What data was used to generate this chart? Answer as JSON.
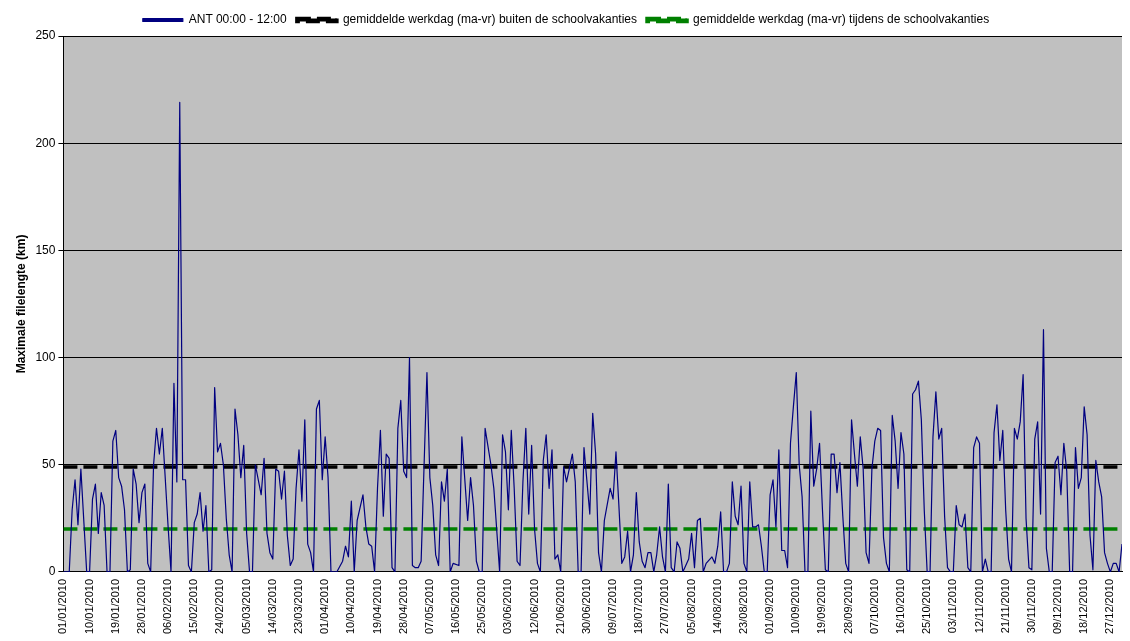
{
  "chart_data": {
    "type": "line",
    "ylabel": "Maximale filelengte (km)",
    "legend": "top",
    "grid": "y",
    "marker": "none",
    "line_style": "solid",
    "xlim": [
      "2010-01-01",
      "2010-12-31"
    ],
    "xticks": [
      {
        "value": "2010-01-01",
        "label": "01/01/2010"
      },
      {
        "value": "2010-01-10",
        "label": "10/01/2010"
      },
      {
        "value": "2010-01-19",
        "label": "19/01/2010"
      },
      {
        "value": "2010-01-28",
        "label": "28/01/2010"
      },
      {
        "value": "2010-02-06",
        "label": "06/02/2010"
      },
      {
        "value": "2010-02-15",
        "label": "15/02/2010"
      },
      {
        "value": "2010-02-24",
        "label": "24/02/2010"
      },
      {
        "value": "2010-03-05",
        "label": "05/03/2010"
      },
      {
        "value": "2010-03-14",
        "label": "14/03/2010"
      },
      {
        "value": "2010-03-23",
        "label": "23/03/2010"
      },
      {
        "value": "2010-04-01",
        "label": "01/04/2010"
      },
      {
        "value": "2010-04-10",
        "label": "10/04/2010"
      },
      {
        "value": "2010-04-19",
        "label": "19/04/2010"
      },
      {
        "value": "2010-04-28",
        "label": "28/04/2010"
      },
      {
        "value": "2010-05-07",
        "label": "07/05/2010"
      },
      {
        "value": "2010-05-16",
        "label": "16/05/2010"
      },
      {
        "value": "2010-05-25",
        "label": "25/05/2010"
      },
      {
        "value": "2010-06-03",
        "label": "03/06/2010"
      },
      {
        "value": "2010-06-12",
        "label": "12/06/2010"
      },
      {
        "value": "2010-06-21",
        "label": "21/06/2010"
      },
      {
        "value": "2010-06-30",
        "label": "30/06/2010"
      },
      {
        "value": "2010-07-09",
        "label": "09/07/2010"
      },
      {
        "value": "2010-07-18",
        "label": "18/07/2010"
      },
      {
        "value": "2010-07-27",
        "label": "27/07/2010"
      },
      {
        "value": "2010-08-05",
        "label": "05/08/2010"
      },
      {
        "value": "2010-08-14",
        "label": "14/08/2010"
      },
      {
        "value": "2010-08-23",
        "label": "23/08/2010"
      },
      {
        "value": "2010-09-01",
        "label": "01/09/2010"
      },
      {
        "value": "2010-09-10",
        "label": "10/09/2010"
      },
      {
        "value": "2010-09-19",
        "label": "19/09/2010"
      },
      {
        "value": "2010-09-28",
        "label": "28/09/2010"
      },
      {
        "value": "2010-10-07",
        "label": "07/10/2010"
      },
      {
        "value": "2010-10-16",
        "label": "16/10/2010"
      },
      {
        "value": "2010-10-25",
        "label": "25/10/2010"
      },
      {
        "value": "2010-11-03",
        "label": "03/11/2010"
      },
      {
        "value": "2010-11-12",
        "label": "12/11/2010"
      },
      {
        "value": "2010-11-21",
        "label": "21/11/2010"
      },
      {
        "value": "2010-11-30",
        "label": "30/11/2010"
      },
      {
        "value": "2010-12-09",
        "label": "09/12/2010"
      },
      {
        "value": "2010-12-18",
        "label": "18/12/2010"
      },
      {
        "value": "2010-12-27",
        "label": "27/12/2010"
      }
    ],
    "ylim": [
      0,
      250
    ],
    "yticks": [
      0,
      50,
      100,
      150,
      200,
      250
    ],
    "ref_lines": [
      {
        "axis": "y",
        "value": 49,
        "label": "gemiddelde werkdag (ma-vr) buiten de schoolvakanties",
        "color": "#000000",
        "line_style": "dashed"
      },
      {
        "axis": "y",
        "value": 20,
        "label": "gemiddelde werkdag (ma-vr) tijdens de schoolvakanties",
        "color": "#008000",
        "line_style": "dashed"
      }
    ],
    "series": [
      {
        "name": "ANT 00:00 - 12:00",
        "color": "#000080",
        "x": [
          "2010-01-01",
          "2010-01-03",
          "2010-01-04",
          "2010-01-05",
          "2010-01-06",
          "2010-01-07",
          "2010-01-09",
          "2010-01-10",
          "2010-01-11",
          "2010-01-12",
          "2010-01-13",
          "2010-01-14",
          "2010-01-15",
          "2010-01-16",
          "2010-01-17",
          "2010-01-18",
          "2010-01-19",
          "2010-01-20",
          "2010-01-21",
          "2010-01-22",
          "2010-01-23",
          "2010-01-24",
          "2010-01-25",
          "2010-01-26",
          "2010-01-27",
          "2010-01-28",
          "2010-01-29",
          "2010-01-30",
          "2010-01-31",
          "2010-02-01",
          "2010-02-02",
          "2010-02-03",
          "2010-02-04",
          "2010-02-06",
          "2010-02-07",
          "2010-02-08",
          "2010-02-09",
          "2010-02-10",
          "2010-02-11",
          "2010-02-12",
          "2010-02-13",
          "2010-02-14",
          "2010-02-15",
          "2010-02-16",
          "2010-02-17",
          "2010-02-18",
          "2010-02-19",
          "2010-02-20",
          "2010-02-21",
          "2010-02-22",
          "2010-02-23",
          "2010-02-24",
          "2010-02-25",
          "2010-02-26",
          "2010-02-27",
          "2010-02-28",
          "2010-03-01",
          "2010-03-02",
          "2010-03-03",
          "2010-03-04",
          "2010-03-05",
          "2010-03-06",
          "2010-03-07",
          "2010-03-08",
          "2010-03-10",
          "2010-03-11",
          "2010-03-12",
          "2010-03-13",
          "2010-03-14",
          "2010-03-15",
          "2010-03-16",
          "2010-03-17",
          "2010-03-18",
          "2010-03-19",
          "2010-03-20",
          "2010-03-21",
          "2010-03-22",
          "2010-03-23",
          "2010-03-24",
          "2010-03-25",
          "2010-03-26",
          "2010-03-27",
          "2010-03-28",
          "2010-03-29",
          "2010-03-30",
          "2010-03-31",
          "2010-04-01",
          "2010-04-02",
          "2010-04-03",
          "2010-04-05",
          "2010-04-07",
          "2010-04-08",
          "2010-04-09",
          "2010-04-10",
          "2010-04-11",
          "2010-04-12",
          "2010-04-14",
          "2010-04-15",
          "2010-04-16",
          "2010-04-17",
          "2010-04-18",
          "2010-04-19",
          "2010-04-20",
          "2010-04-21",
          "2010-04-22",
          "2010-04-23",
          "2010-04-24",
          "2010-04-25",
          "2010-04-26",
          "2010-04-27",
          "2010-04-28",
          "2010-04-29",
          "2010-04-30",
          "2010-05-01",
          "2010-05-02",
          "2010-05-03",
          "2010-05-04",
          "2010-05-06",
          "2010-05-07",
          "2010-05-08",
          "2010-05-09",
          "2010-05-10",
          "2010-05-11",
          "2010-05-12",
          "2010-05-13",
          "2010-05-14",
          "2010-05-15",
          "2010-05-17",
          "2010-05-18",
          "2010-05-20",
          "2010-05-21",
          "2010-05-22",
          "2010-05-23",
          "2010-05-24",
          "2010-05-25",
          "2010-05-26",
          "2010-05-28",
          "2010-05-29",
          "2010-05-31",
          "2010-06-01",
          "2010-06-02",
          "2010-06-03",
          "2010-06-04",
          "2010-06-05",
          "2010-06-06",
          "2010-06-07",
          "2010-06-08",
          "2010-06-09",
          "2010-06-10",
          "2010-06-11",
          "2010-06-12",
          "2010-06-13",
          "2010-06-14",
          "2010-06-15",
          "2010-06-16",
          "2010-06-17",
          "2010-06-18",
          "2010-06-19",
          "2010-06-20",
          "2010-06-21",
          "2010-06-22",
          "2010-06-23",
          "2010-06-25",
          "2010-06-26",
          "2010-06-27",
          "2010-06-28",
          "2010-06-29",
          "2010-07-01",
          "2010-07-02",
          "2010-07-03",
          "2010-07-04",
          "2010-07-05",
          "2010-07-06",
          "2010-07-08",
          "2010-07-09",
          "2010-07-10",
          "2010-07-11",
          "2010-07-12",
          "2010-07-13",
          "2010-07-14",
          "2010-07-15",
          "2010-07-16",
          "2010-07-17",
          "2010-07-18",
          "2010-07-19",
          "2010-07-20",
          "2010-07-21",
          "2010-07-22",
          "2010-07-23",
          "2010-07-24",
          "2010-07-25",
          "2010-07-26",
          "2010-07-27",
          "2010-07-28",
          "2010-07-29",
          "2010-07-30",
          "2010-07-31",
          "2010-08-01",
          "2010-08-02",
          "2010-08-04",
          "2010-08-05",
          "2010-08-06",
          "2010-08-07",
          "2010-08-08",
          "2010-08-09",
          "2010-08-10",
          "2010-08-12",
          "2010-08-13",
          "2010-08-14",
          "2010-08-15",
          "2010-08-16",
          "2010-08-17",
          "2010-08-18",
          "2010-08-19",
          "2010-08-20",
          "2010-08-21",
          "2010-08-22",
          "2010-08-23",
          "2010-08-24",
          "2010-08-25",
          "2010-08-26",
          "2010-08-27",
          "2010-08-28",
          "2010-08-29",
          "2010-08-30",
          "2010-08-31",
          "2010-09-01",
          "2010-09-02",
          "2010-09-03",
          "2010-09-04",
          "2010-09-05",
          "2010-09-06",
          "2010-09-07",
          "2010-09-08",
          "2010-09-09",
          "2010-09-10",
          "2010-09-11",
          "2010-09-12",
          "2010-09-13",
          "2010-09-14",
          "2010-09-15",
          "2010-09-16",
          "2010-09-17",
          "2010-09-18",
          "2010-09-19",
          "2010-09-20",
          "2010-09-21",
          "2010-09-22",
          "2010-09-23",
          "2010-09-24",
          "2010-09-25",
          "2010-09-26",
          "2010-09-27",
          "2010-09-28",
          "2010-09-29",
          "2010-09-30",
          "2010-10-01",
          "2010-10-02",
          "2010-10-03",
          "2010-10-04",
          "2010-10-05",
          "2010-10-06",
          "2010-10-07",
          "2010-10-08",
          "2010-10-09",
          "2010-10-10",
          "2010-10-11",
          "2010-10-12",
          "2010-10-13",
          "2010-10-14",
          "2010-10-15",
          "2010-10-16",
          "2010-10-17",
          "2010-10-18",
          "2010-10-19",
          "2010-10-20",
          "2010-10-21",
          "2010-10-22",
          "2010-10-23",
          "2010-10-24",
          "2010-10-25",
          "2010-10-26",
          "2010-10-27",
          "2010-10-28",
          "2010-10-29",
          "2010-10-30",
          "2010-10-31",
          "2010-11-01",
          "2010-11-02",
          "2010-11-03",
          "2010-11-04",
          "2010-11-05",
          "2010-11-06",
          "2010-11-07",
          "2010-11-08",
          "2010-11-09",
          "2010-11-10",
          "2010-11-11",
          "2010-11-12",
          "2010-11-13",
          "2010-11-14",
          "2010-11-15",
          "2010-11-16",
          "2010-11-17",
          "2010-11-18",
          "2010-11-19",
          "2010-11-20",
          "2010-11-21",
          "2010-11-22",
          "2010-11-23",
          "2010-11-24",
          "2010-11-25",
          "2010-11-26",
          "2010-11-27",
          "2010-11-28",
          "2010-11-29",
          "2010-11-30",
          "2010-12-01",
          "2010-12-02",
          "2010-12-03",
          "2010-12-04",
          "2010-12-05",
          "2010-12-06",
          "2010-12-07",
          "2010-12-08",
          "2010-12-09",
          "2010-12-10",
          "2010-12-11",
          "2010-12-12",
          "2010-12-13",
          "2010-12-14",
          "2010-12-15",
          "2010-12-16",
          "2010-12-17",
          "2010-12-18",
          "2010-12-19",
          "2010-12-20",
          "2010-12-21",
          "2010-12-22",
          "2010-12-23",
          "2010-12-24",
          "2010-12-25",
          "2010-12-26",
          "2010-12-27",
          "2010-12-28",
          "2010-12-29",
          "2010-12-30",
          "2010-12-31"
        ],
        "values": [
          0,
          0,
          29,
          43,
          22,
          48,
          0,
          0,
          34,
          41,
          18,
          37,
          31,
          0,
          0,
          61,
          66,
          44,
          40,
          29,
          0,
          1,
          48,
          41,
          23,
          37,
          41,
          4,
          0,
          50,
          67,
          55,
          67,
          21,
          0,
          88,
          42,
          219,
          43,
          43,
          3,
          0,
          23,
          27,
          37,
          19,
          31,
          0,
          1,
          86,
          56,
          60,
          50,
          25,
          8,
          0,
          76,
          64,
          44,
          59,
          18,
          0,
          0,
          50,
          36,
          53,
          18,
          9,
          6,
          48,
          47,
          34,
          47,
          17,
          3,
          6,
          39,
          57,
          33,
          71,
          13,
          9,
          0,
          76,
          80,
          43,
          63,
          44,
          0,
          0,
          5,
          12,
          7,
          33,
          0,
          24,
          36,
          21,
          13,
          12,
          0,
          39,
          66,
          26,
          55,
          53,
          2,
          0,
          67,
          80,
          47,
          44,
          100,
          3,
          2,
          2,
          5,
          93,
          44,
          31,
          8,
          3,
          42,
          33,
          48,
          0,
          4,
          3,
          63,
          24,
          44,
          31,
          5,
          0,
          0,
          67,
          50,
          39,
          0,
          64,
          56,
          29,
          66,
          39,
          5,
          3,
          42,
          67,
          27,
          59,
          20,
          4,
          0,
          52,
          64,
          39,
          57,
          6,
          8,
          0,
          49,
          42,
          55,
          42,
          0,
          0,
          58,
          27,
          74,
          55,
          9,
          0,
          24,
          39,
          34,
          56,
          31,
          4,
          7,
          19,
          0,
          8,
          37,
          14,
          5,
          2,
          9,
          9,
          0,
          8,
          21,
          7,
          0,
          41,
          2,
          0,
          14,
          11,
          0,
          6,
          18,
          2,
          24,
          25,
          0,
          4,
          7,
          4,
          12,
          28,
          0,
          0,
          4,
          42,
          26,
          22,
          40,
          4,
          0,
          42,
          21,
          21,
          22,
          12,
          0,
          0,
          36,
          43,
          21,
          57,
          10,
          10,
          2,
          60,
          77,
          93,
          50,
          35,
          0,
          0,
          75,
          40,
          48,
          60,
          29,
          1,
          0,
          55,
          55,
          37,
          51,
          26,
          4,
          0,
          71,
          55,
          40,
          63,
          48,
          9,
          4,
          48,
          61,
          67,
          66,
          16,
          4,
          0,
          73,
          61,
          39,
          65,
          55,
          1,
          0,
          83,
          85,
          89,
          71,
          29,
          0,
          0,
          63,
          84,
          62,
          67,
          26,
          2,
          0,
          0,
          31,
          22,
          21,
          27,
          2,
          0,
          58,
          63,
          60,
          0,
          6,
          0,
          0,
          65,
          78,
          52,
          66,
          29,
          6,
          0,
          67,
          62,
          70,
          92,
          25,
          2,
          1,
          62,
          70,
          27,
          113,
          11,
          0,
          0,
          51,
          54,
          36,
          60,
          47,
          0,
          0,
          58,
          39,
          44,
          77,
          64,
          17,
          1,
          52,
          42,
          35,
          9,
          4,
          0,
          4,
          4,
          0,
          13
        ]
      }
    ]
  }
}
